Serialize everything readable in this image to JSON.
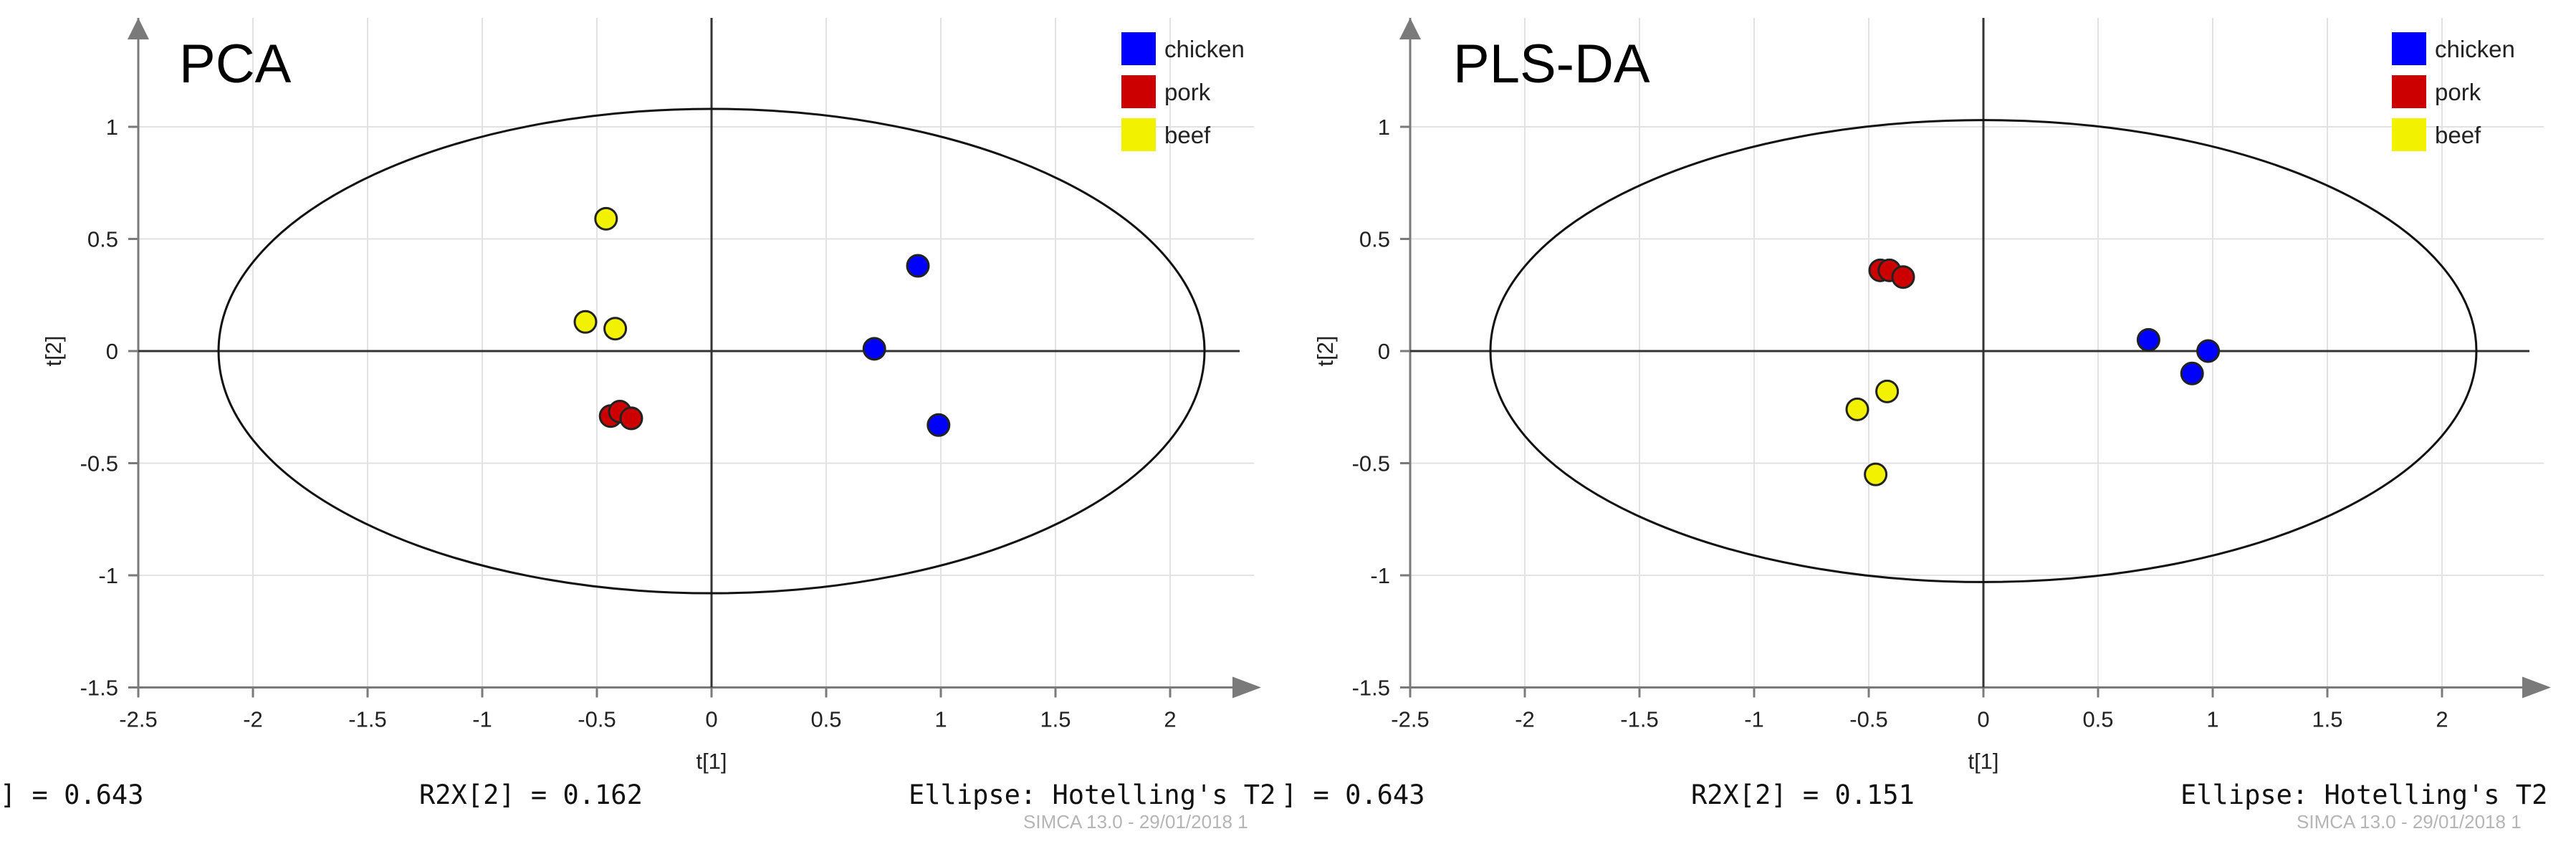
{
  "chart_data": [
    {
      "type": "scatter",
      "title": "PCA",
      "xlabel": "t[1]",
      "ylabel": "t[2]",
      "xlim": [
        -2.5,
        2.5
      ],
      "ylim": [
        -1.5,
        1.5
      ],
      "xticks": [
        "-2.5",
        "-2",
        "-1.5",
        "-1",
        "-0.5",
        "0",
        "0.5",
        "1",
        "1.5",
        "2"
      ],
      "yticks": [
        "-1.5",
        "-1",
        "-0.5",
        "0",
        "0.5",
        "1"
      ],
      "grid": true,
      "legend_position": "top-right",
      "ellipse": {
        "rx": 2.15,
        "ry": 1.08
      },
      "series": [
        {
          "name": "chicken",
          "color": "#0000ff",
          "points": [
            [
              0.9,
              0.38
            ],
            [
              0.71,
              0.01
            ],
            [
              0.99,
              -0.33
            ]
          ]
        },
        {
          "name": "pork",
          "color": "#cc0000",
          "points": [
            [
              -0.44,
              -0.29
            ],
            [
              -0.4,
              -0.27
            ],
            [
              -0.35,
              -0.3
            ]
          ]
        },
        {
          "name": "beef",
          "color": "#f2f200",
          "points": [
            [
              -0.46,
              0.59
            ],
            [
              -0.55,
              0.13
            ],
            [
              -0.42,
              0.1
            ]
          ]
        }
      ],
      "footer": {
        "r2x1": "] = 0.643",
        "r2x2": "R2X[2] = 0.162",
        "ellipse": "Ellipse: Hotelling's T2",
        "watermark": "SIMCA 13.0 - 29/01/2018 1"
      }
    },
    {
      "type": "scatter",
      "title": "PLS-DA",
      "xlabel": "t[1]",
      "ylabel": "t[2]",
      "xlim": [
        -2.5,
        2.5
      ],
      "ylim": [
        -1.5,
        1.5
      ],
      "xticks": [
        "-2.5",
        "-2",
        "-1.5",
        "-1",
        "-0.5",
        "0",
        "0.5",
        "1",
        "1.5",
        "2"
      ],
      "yticks": [
        "-1.5",
        "-1",
        "-0.5",
        "0",
        "0.5",
        "1"
      ],
      "grid": true,
      "legend_position": "top-right",
      "ellipse": {
        "rx": 2.15,
        "ry": 1.03
      },
      "series": [
        {
          "name": "chicken",
          "color": "#0000ff",
          "points": [
            [
              0.72,
              0.05
            ],
            [
              0.91,
              -0.1
            ],
            [
              0.98,
              0.0
            ]
          ]
        },
        {
          "name": "pork",
          "color": "#cc0000",
          "points": [
            [
              -0.45,
              0.36
            ],
            [
              -0.41,
              0.36
            ],
            [
              -0.35,
              0.33
            ]
          ]
        },
        {
          "name": "beef",
          "color": "#f2f200",
          "points": [
            [
              -0.55,
              -0.26
            ],
            [
              -0.42,
              -0.18
            ],
            [
              -0.47,
              -0.55
            ]
          ]
        }
      ],
      "footer": {
        "r2x1": "] = 0.643",
        "r2x2": "R2X[2] = 0.151",
        "ellipse": "Ellipse: Hotelling's T2",
        "watermark": "SIMCA 13.0 - 29/01/2018 1"
      }
    }
  ]
}
